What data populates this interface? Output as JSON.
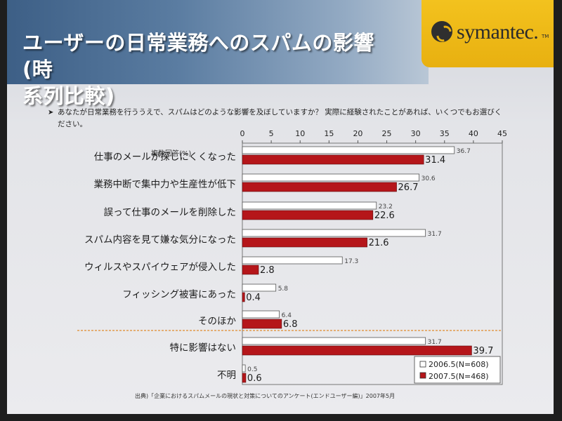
{
  "header": {
    "title": "ユーザーの日常業務へのスパムの影響(時\n系列比較)",
    "logo_text": "symantec.",
    "logo_tm": "TM"
  },
  "question": "あなたが日常業務を行ううえで、スパムはどのような影響を及ぼしていますか？ 実際に経験されたことがあれば、いくつでもお選びください。",
  "footnote": "出典)「企業におけるスパムメールの現状と対策についてのアンケート(エンドユーザー編)」2007年5月",
  "colors": {
    "series_2006": "#ffffff",
    "series_2007": "#b5161a",
    "divider": "#e08a2c"
  },
  "chart_data": {
    "type": "bar",
    "orientation": "horizontal",
    "unit_label": "複数回答(%)",
    "xlim": [
      0,
      45
    ],
    "xticks": [
      0,
      5,
      10,
      15,
      20,
      25,
      30,
      35,
      40,
      45
    ],
    "grid": false,
    "legend_position": "bottom-right",
    "categories": [
      "仕事のメールが探しにくくなった",
      "業務中断で集中力や生産性が低下",
      "誤って仕事のメールを削除した",
      "スパム内容を見て嫌な気分になった",
      "ウィルスやスパイウェアが侵入した",
      "フィッシング被害にあった",
      "そのほか",
      "特に影響はない",
      "不明"
    ],
    "series": [
      {
        "name": "2006.5(N=608)",
        "values": [
          36.7,
          30.6,
          23.2,
          31.7,
          17.3,
          5.8,
          6.4,
          31.7,
          0.5
        ],
        "labels": [
          "36.7",
          "30.6",
          "23.2",
          "31.7",
          "17.3",
          "5.8",
          "6.4",
          "31.7",
          "0.5"
        ]
      },
      {
        "name": "2007.5(N=468)",
        "values": [
          31.4,
          26.7,
          22.6,
          21.6,
          2.8,
          0.4,
          6.8,
          39.7,
          0.6
        ],
        "labels": [
          "31.4",
          "26.7",
          "22.6",
          "21.6",
          "2.8",
          "0.4",
          "6.8",
          "39.7",
          "0.6"
        ]
      }
    ]
  }
}
